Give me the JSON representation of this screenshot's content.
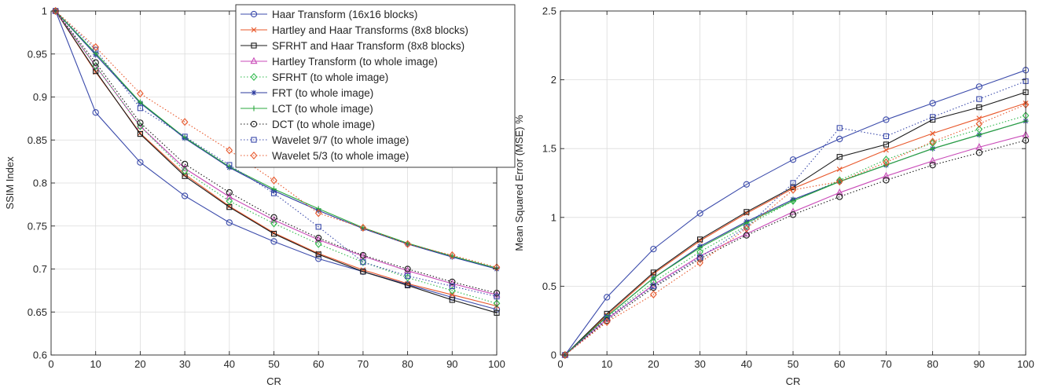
{
  "chart_data": [
    {
      "type": "line",
      "xlabel": "CR",
      "ylabel": "SSIM Index",
      "xlim": [
        0,
        100
      ],
      "ylim": [
        0.6,
        1
      ],
      "xticks": [
        0,
        10,
        20,
        30,
        40,
        50,
        60,
        70,
        80,
        90,
        100
      ],
      "yticks": [
        0.6,
        0.65,
        0.7,
        0.75,
        0.8,
        0.85,
        0.9,
        0.95,
        1
      ],
      "ytick_labels": [
        "0.6",
        "0.65",
        "0.7",
        "0.75",
        "0.8",
        "0.85",
        "0.9",
        "0.95",
        "1"
      ],
      "grid": true,
      "legend": "top-right",
      "x": [
        1,
        10,
        20,
        30,
        40,
        50,
        60,
        70,
        80,
        90,
        100
      ],
      "series": [
        {
          "name": "Haar Transform (16x16 blocks)",
          "color": "#3b4bab",
          "marker": "circle",
          "dash": "solid",
          "values": [
            1.0,
            0.882,
            0.824,
            0.785,
            0.754,
            0.732,
            0.712,
            0.697,
            0.682,
            0.667,
            0.653
          ]
        },
        {
          "name": "Hartley and Haar Transforms (8x8 blocks)",
          "color": "#e8572a",
          "marker": "x",
          "dash": "solid",
          "values": [
            1.0,
            0.929,
            0.858,
            0.81,
            0.773,
            0.742,
            0.718,
            0.699,
            0.683,
            0.67,
            0.657
          ]
        },
        {
          "name": "SFRHT and Haar Transform (8x8 blocks)",
          "color": "#1a1a1a",
          "marker": "square",
          "dash": "solid",
          "values": [
            1.0,
            0.93,
            0.857,
            0.808,
            0.772,
            0.741,
            0.717,
            0.697,
            0.681,
            0.664,
            0.649
          ]
        },
        {
          "name": "Hartley Transform (to whole image)",
          "color": "#c94ab8",
          "marker": "triangle",
          "dash": "solid",
          "values": [
            1.0,
            0.936,
            0.866,
            0.817,
            0.784,
            0.757,
            0.734,
            0.715,
            0.698,
            0.683,
            0.67
          ]
        },
        {
          "name": "SFRHT (to whole image)",
          "color": "#2db84a",
          "marker": "diamond",
          "dash": "dotted",
          "values": [
            1.0,
            0.936,
            0.866,
            0.814,
            0.779,
            0.753,
            0.729,
            0.708,
            0.69,
            0.675,
            0.66
          ]
        },
        {
          "name": "FRT (to whole image)",
          "color": "#2b3a9e",
          "marker": "star",
          "dash": "solid",
          "values": [
            1.0,
            0.949,
            0.893,
            0.852,
            0.818,
            0.791,
            0.768,
            0.747,
            0.729,
            0.714,
            0.7
          ]
        },
        {
          "name": "LCT (to whole image)",
          "color": "#29a83c",
          "marker": "plus",
          "dash": "solid",
          "values": [
            1.0,
            0.951,
            0.894,
            0.853,
            0.819,
            0.793,
            0.77,
            0.748,
            0.73,
            0.715,
            0.701
          ]
        },
        {
          "name": "DCT (to whole image)",
          "color": "#1a1a1a",
          "marker": "circle",
          "dash": "dotted",
          "values": [
            1.0,
            0.94,
            0.87,
            0.822,
            0.789,
            0.76,
            0.736,
            0.716,
            0.7,
            0.685,
            0.672
          ]
        },
        {
          "name": "Wavelet 9/7 (to whole image)",
          "color": "#3b4bab",
          "marker": "square",
          "dash": "dotted",
          "values": [
            1.0,
            0.955,
            0.887,
            0.854,
            0.821,
            0.788,
            0.749,
            0.708,
            0.692,
            0.68,
            0.668
          ]
        },
        {
          "name": "Wavelet 5/3 (to whole image)",
          "color": "#e8572a",
          "marker": "diamond",
          "dash": "dotted",
          "values": [
            1.0,
            0.958,
            0.904,
            0.871,
            0.838,
            0.803,
            0.765,
            0.748,
            0.729,
            0.716,
            0.702
          ]
        }
      ]
    },
    {
      "type": "line",
      "xlabel": "CR",
      "ylabel": "Mean Squared Error (MSE) %",
      "xlim": [
        0,
        100
      ],
      "ylim": [
        0,
        2.5
      ],
      "xticks": [
        0,
        10,
        20,
        30,
        40,
        50,
        60,
        70,
        80,
        90,
        100
      ],
      "yticks": [
        0,
        0.5,
        1,
        1.5,
        2,
        2.5
      ],
      "ytick_labels": [
        "0",
        "0.5",
        "1",
        "1.5",
        "2",
        "2.5"
      ],
      "grid": true,
      "x": [
        1,
        10,
        20,
        30,
        40,
        50,
        60,
        70,
        80,
        90,
        100
      ],
      "series": [
        {
          "name": "Haar Transform (16x16 blocks)",
          "color": "#3b4bab",
          "marker": "circle",
          "dash": "solid",
          "values": [
            0.0,
            0.42,
            0.77,
            1.03,
            1.24,
            1.42,
            1.57,
            1.71,
            1.83,
            1.95,
            2.07
          ]
        },
        {
          "name": "Hartley and Haar Transforms (8x8 blocks)",
          "color": "#e8572a",
          "marker": "x",
          "dash": "solid",
          "values": [
            0.0,
            0.29,
            0.59,
            0.83,
            1.03,
            1.21,
            1.35,
            1.49,
            1.61,
            1.72,
            1.83
          ]
        },
        {
          "name": "SFRHT and Haar Transform (8x8 blocks)",
          "color": "#1a1a1a",
          "marker": "square",
          "dash": "solid",
          "values": [
            0.0,
            0.3,
            0.6,
            0.84,
            1.04,
            1.22,
            1.44,
            1.53,
            1.71,
            1.8,
            1.91
          ]
        },
        {
          "name": "Hartley Transform (to whole image)",
          "color": "#c94ab8",
          "marker": "triangle",
          "dash": "solid",
          "values": [
            0.0,
            0.26,
            0.51,
            0.72,
            0.88,
            1.04,
            1.18,
            1.3,
            1.41,
            1.51,
            1.6
          ]
        },
        {
          "name": "SFRHT (to whole image)",
          "color": "#2db84a",
          "marker": "diamond",
          "dash": "dotted",
          "values": [
            0.0,
            0.27,
            0.53,
            0.75,
            0.94,
            1.12,
            1.27,
            1.42,
            1.54,
            1.64,
            1.74
          ]
        },
        {
          "name": "FRT (to whole image)",
          "color": "#2b3a9e",
          "marker": "star",
          "dash": "solid",
          "values": [
            0.0,
            0.28,
            0.56,
            0.79,
            0.97,
            1.13,
            1.26,
            1.38,
            1.5,
            1.6,
            1.7
          ]
        },
        {
          "name": "LCT (to whole image)",
          "color": "#29a83c",
          "marker": "plus",
          "dash": "solid",
          "values": [
            0.0,
            0.28,
            0.56,
            0.78,
            0.96,
            1.12,
            1.26,
            1.38,
            1.5,
            1.6,
            1.7
          ]
        },
        {
          "name": "DCT (to whole image)",
          "color": "#1a1a1a",
          "marker": "circle",
          "dash": "dotted",
          "values": [
            0.0,
            0.25,
            0.49,
            0.7,
            0.87,
            1.02,
            1.15,
            1.27,
            1.38,
            1.47,
            1.56
          ]
        },
        {
          "name": "Wavelet 9/7 (to whole image)",
          "color": "#3b4bab",
          "marker": "square",
          "dash": "dotted",
          "values": [
            0.0,
            0.27,
            0.5,
            0.71,
            0.93,
            1.25,
            1.65,
            1.59,
            1.73,
            1.86,
            1.99
          ]
        },
        {
          "name": "Wavelet 5/3 (to whole image)",
          "color": "#e8572a",
          "marker": "diamond",
          "dash": "dotted",
          "values": [
            0.0,
            0.24,
            0.44,
            0.67,
            0.92,
            1.2,
            1.26,
            1.4,
            1.55,
            1.68,
            1.82
          ]
        }
      ]
    }
  ]
}
